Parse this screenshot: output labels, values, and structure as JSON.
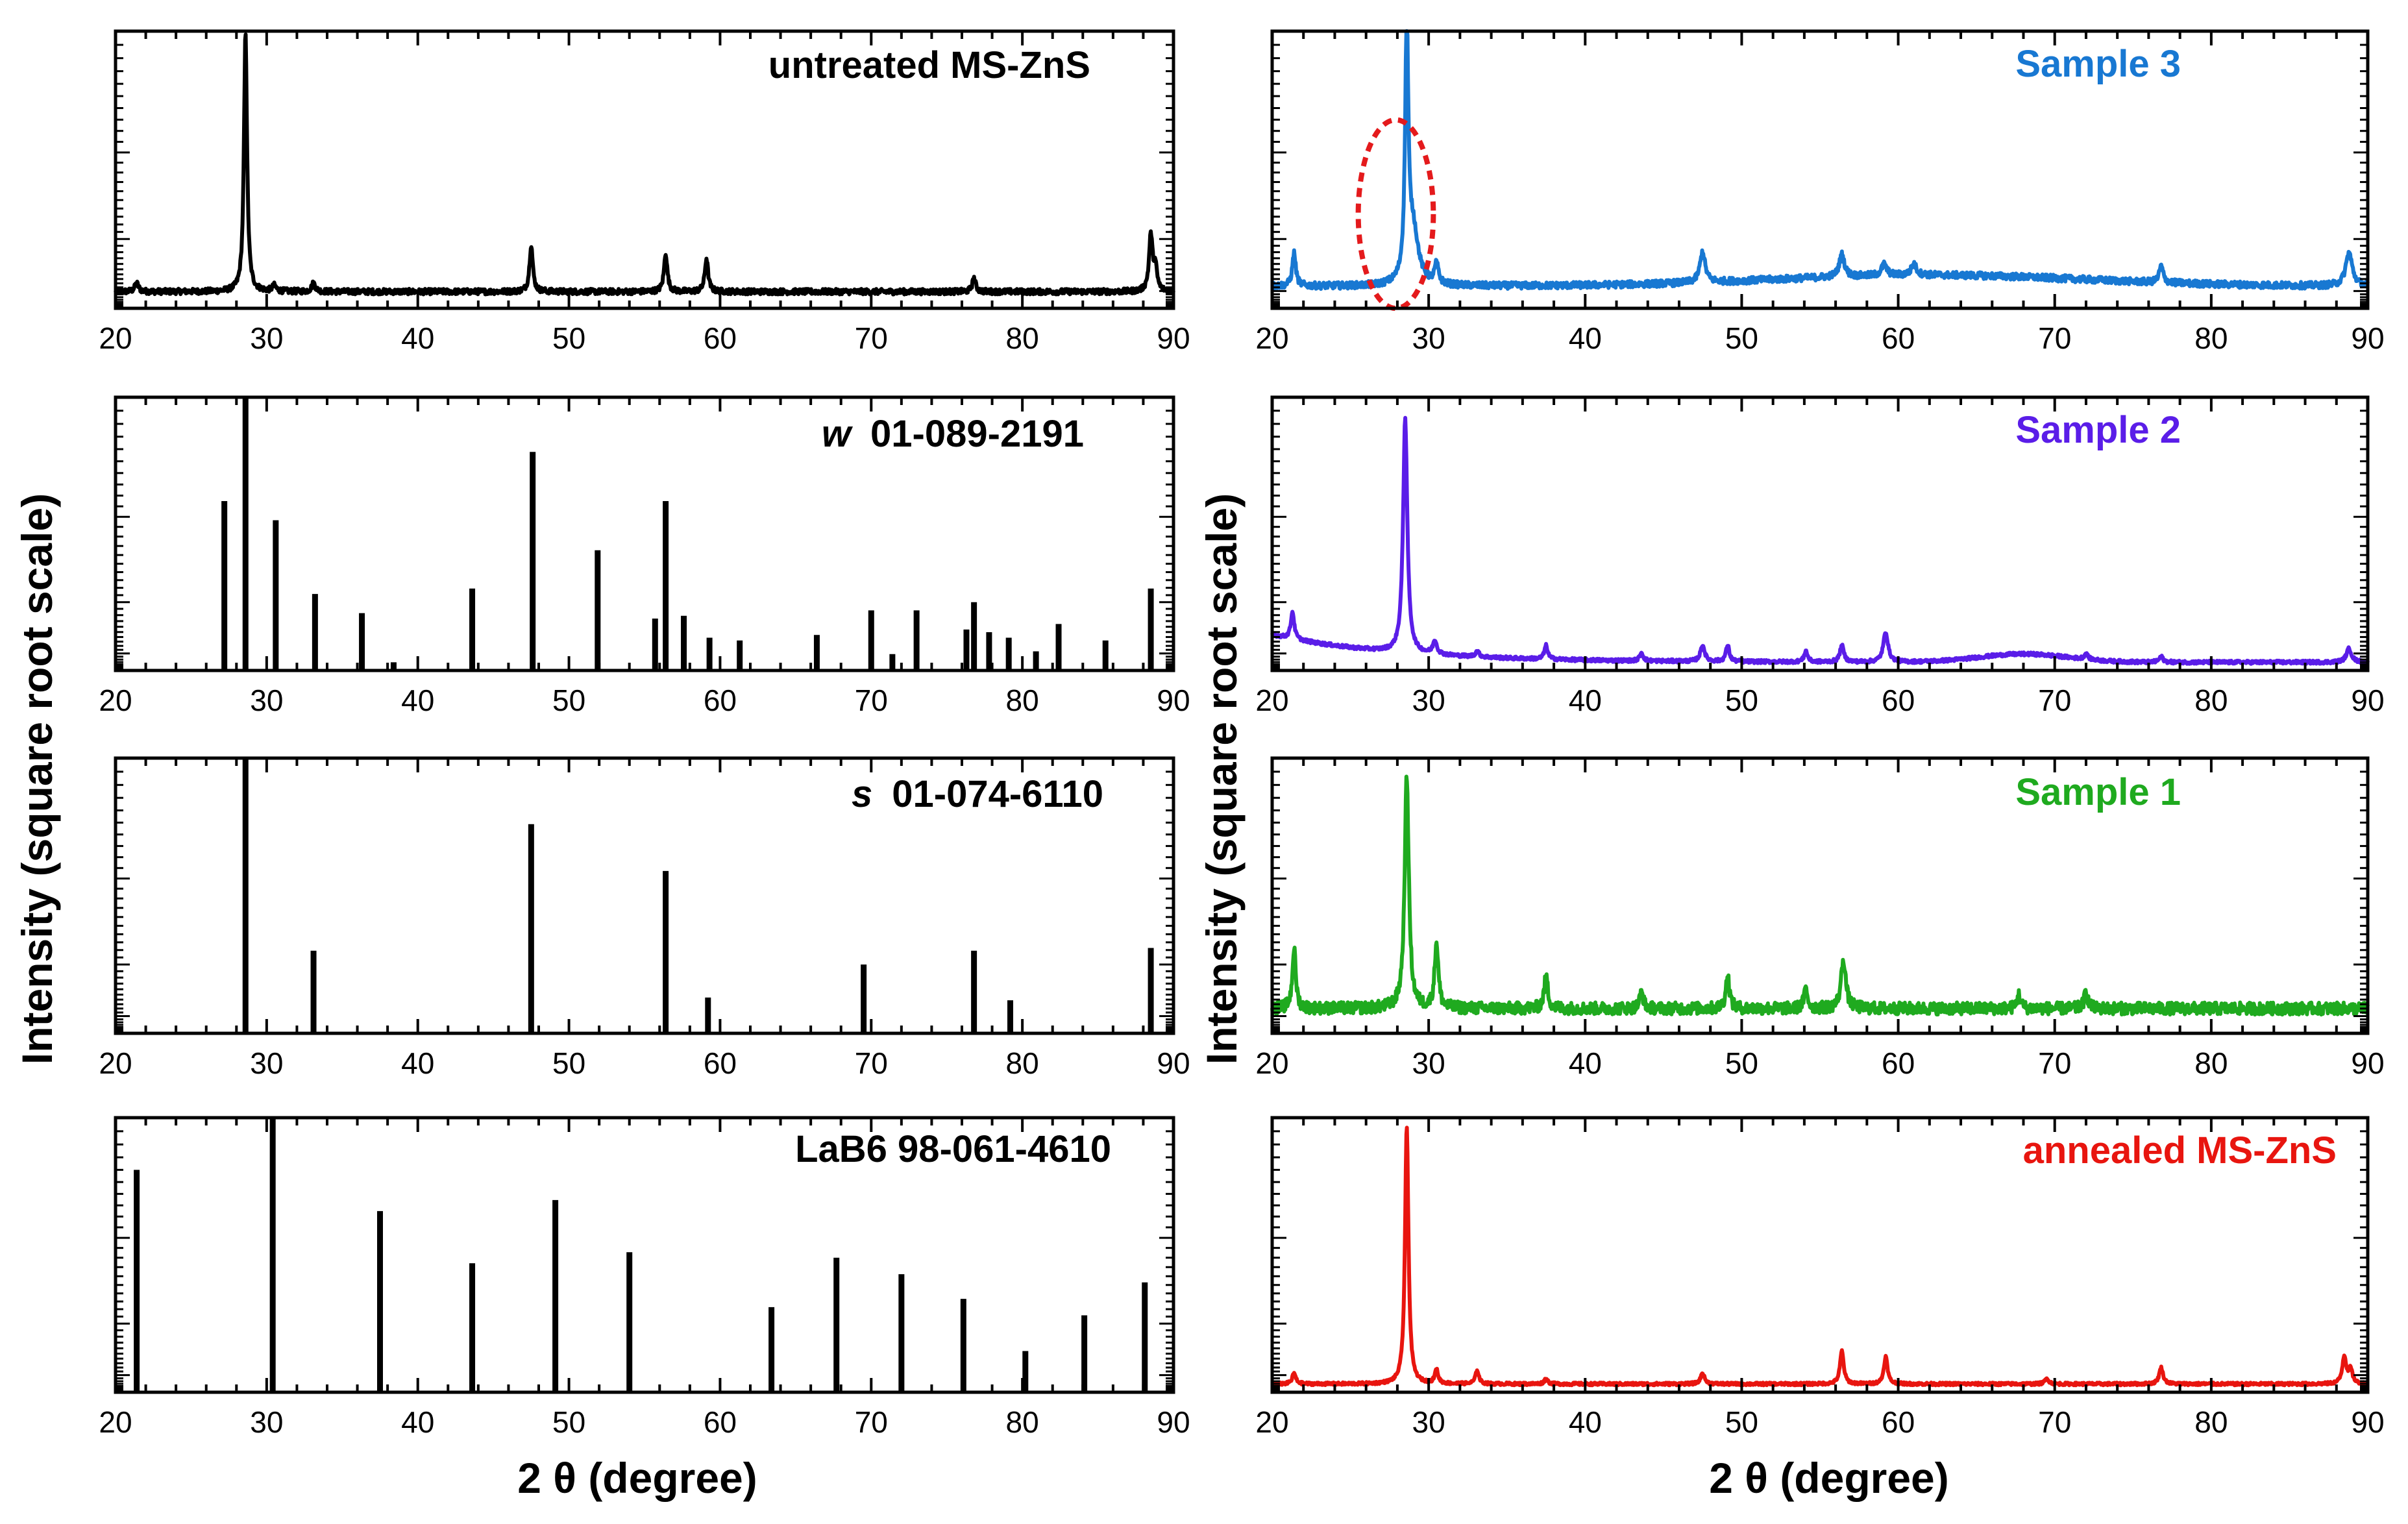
{
  "figure": {
    "xlabel": "2 θ (degree)",
    "ylabel": "Intensity (square root scale)"
  },
  "chart_data": [
    {
      "id": "untreated",
      "type": "line",
      "title": "untreated MS-ZnS",
      "title_italic_prefix": "",
      "color": "#000000",
      "xlim": [
        20,
        90
      ],
      "ylim": [
        0,
        100
      ],
      "xticks": [
        20,
        30,
        40,
        50,
        60,
        70,
        80,
        90
      ],
      "baseline": 6,
      "noise": 1.0,
      "peaks": [
        {
          "x": 21.4,
          "h": 3,
          "w": 0.15
        },
        {
          "x": 28.6,
          "h": 94,
          "w": 0.12
        },
        {
          "x": 30.5,
          "h": 2,
          "w": 0.15
        },
        {
          "x": 33.1,
          "h": 3,
          "w": 0.15
        },
        {
          "x": 47.5,
          "h": 17,
          "w": 0.13
        },
        {
          "x": 56.4,
          "h": 14,
          "w": 0.13
        },
        {
          "x": 59.1,
          "h": 12,
          "w": 0.13
        },
        {
          "x": 76.8,
          "h": 5,
          "w": 0.13
        },
        {
          "x": 88.5,
          "h": 20,
          "w": 0.14
        },
        {
          "x": 88.8,
          "h": 8,
          "w": 0.14
        }
      ]
    },
    {
      "id": "wurtzite",
      "type": "stick",
      "title": "01-089-2191",
      "title_italic_prefix": "w",
      "color": "#000000",
      "xlim": [
        20,
        90
      ],
      "ylim": [
        0,
        100
      ],
      "xticks": [
        20,
        30,
        40,
        50,
        60,
        70,
        80,
        90
      ],
      "x": [
        27.2,
        28.6,
        30.6,
        33.2,
        36.3,
        38.4,
        43.6,
        47.6,
        51.9,
        55.7,
        56.4,
        57.6,
        59.3,
        61.3,
        66.4,
        70.0,
        71.4,
        73.0,
        76.3,
        76.8,
        77.8,
        79.1,
        80.9,
        82.4,
        85.5,
        88.5
      ],
      "values": [
        62,
        100,
        55,
        28,
        21,
        3,
        30,
        80,
        44,
        19,
        62,
        20,
        12,
        11,
        13,
        22,
        6,
        22,
        15,
        25,
        14,
        12,
        7,
        17,
        11,
        30
      ]
    },
    {
      "id": "sphalerite",
      "type": "stick",
      "title": "01-074-6110",
      "title_italic_prefix": "s",
      "color": "#000000",
      "xlim": [
        20,
        90
      ],
      "ylim": [
        0,
        100
      ],
      "xticks": [
        20,
        30,
        40,
        50,
        60,
        70,
        80,
        90
      ],
      "x": [
        28.6,
        33.1,
        47.5,
        56.4,
        59.2,
        69.5,
        76.8,
        79.2,
        88.5
      ],
      "values": [
        100,
        30,
        76,
        59,
        13,
        25,
        30,
        12,
        31
      ]
    },
    {
      "id": "lab6",
      "type": "stick",
      "title": "LaB6 98-061-4610",
      "title_italic_prefix": "",
      "color": "#000000",
      "xlim": [
        20,
        90
      ],
      "ylim": [
        0,
        100
      ],
      "xticks": [
        20,
        30,
        40,
        50,
        60,
        70,
        80,
        90
      ],
      "x": [
        21.4,
        30.4,
        37.5,
        43.6,
        49.1,
        54.0,
        63.4,
        67.7,
        72.0,
        76.1,
        80.2,
        84.1,
        88.1
      ],
      "values": [
        81,
        100,
        66,
        47,
        70,
        51,
        31,
        49,
        43,
        34,
        15,
        28,
        40
      ]
    },
    {
      "id": "sample3",
      "type": "line",
      "title": "Sample 3",
      "title_italic_prefix": "",
      "color": "#1878d2",
      "xlim": [
        20,
        90
      ],
      "ylim": [
        0,
        100
      ],
      "xticks": [
        20,
        30,
        40,
        50,
        60,
        70,
        80,
        90
      ],
      "baseline": 8,
      "noise": 1.2,
      "hump": {
        "x": 62,
        "h": 4,
        "w": 14
      },
      "peaks": [
        {
          "x": 21.4,
          "h": 12,
          "w": 0.13
        },
        {
          "x": 28.6,
          "h": 90,
          "w": 0.12
        },
        {
          "x": 29.0,
          "h": 20,
          "w": 0.4
        },
        {
          "x": 30.5,
          "h": 7,
          "w": 0.15
        },
        {
          "x": 47.5,
          "h": 11,
          "w": 0.2
        },
        {
          "x": 56.4,
          "h": 8,
          "w": 0.2
        },
        {
          "x": 59.1,
          "h": 4,
          "w": 0.2
        },
        {
          "x": 61.0,
          "h": 4,
          "w": 0.2
        },
        {
          "x": 76.8,
          "h": 6,
          "w": 0.15
        },
        {
          "x": 88.8,
          "h": 12,
          "w": 0.25
        }
      ],
      "annotation": {
        "type": "dashed-ellipse",
        "color": "#e41a1c",
        "cx": 27.9,
        "cy": 34,
        "rx": 2.4,
        "ry": 34
      }
    },
    {
      "id": "sample2",
      "type": "line",
      "title": "Sample 2",
      "title_italic_prefix": "",
      "color": "#5a1de8",
      "xlim": [
        20,
        90
      ],
      "ylim": [
        0,
        100
      ],
      "xticks": [
        20,
        30,
        40,
        50,
        60,
        70,
        80,
        90
      ],
      "baseline": 3,
      "noise": 0.6,
      "slope": {
        "start": 10,
        "decay": 8
      },
      "hump": {
        "x": 68,
        "h": 3,
        "w": 4
      },
      "peaks": [
        {
          "x": 21.3,
          "h": 10,
          "w": 0.13
        },
        {
          "x": 28.5,
          "h": 86,
          "w": 0.16
        },
        {
          "x": 30.4,
          "h": 5,
          "w": 0.15
        },
        {
          "x": 33.1,
          "h": 2,
          "w": 0.15
        },
        {
          "x": 37.5,
          "h": 5,
          "w": 0.13
        },
        {
          "x": 43.6,
          "h": 3,
          "w": 0.13
        },
        {
          "x": 47.5,
          "h": 6,
          "w": 0.16
        },
        {
          "x": 49.1,
          "h": 6,
          "w": 0.13
        },
        {
          "x": 54.1,
          "h": 4,
          "w": 0.13
        },
        {
          "x": 56.4,
          "h": 6,
          "w": 0.15
        },
        {
          "x": 59.2,
          "h": 11,
          "w": 0.18
        },
        {
          "x": 72.0,
          "h": 2,
          "w": 0.15
        },
        {
          "x": 76.8,
          "h": 2,
          "w": 0.15
        },
        {
          "x": 88.8,
          "h": 5,
          "w": 0.2
        }
      ]
    },
    {
      "id": "sample1",
      "type": "line",
      "title": "Sample 1",
      "title_italic_prefix": "",
      "color": "#1faa1f",
      "xlim": [
        20,
        90
      ],
      "ylim": [
        0,
        100
      ],
      "xticks": [
        20,
        30,
        40,
        50,
        60,
        70,
        80,
        90
      ],
      "baseline": 9,
      "noise": 2.2,
      "peaks": [
        {
          "x": 21.4,
          "h": 22,
          "w": 0.13
        },
        {
          "x": 28.6,
          "h": 84,
          "w": 0.16
        },
        {
          "x": 30.5,
          "h": 24,
          "w": 0.14
        },
        {
          "x": 37.5,
          "h": 12,
          "w": 0.14
        },
        {
          "x": 43.6,
          "h": 6,
          "w": 0.14
        },
        {
          "x": 49.1,
          "h": 12,
          "w": 0.14
        },
        {
          "x": 54.1,
          "h": 7,
          "w": 0.14
        },
        {
          "x": 56.5,
          "h": 18,
          "w": 0.18
        },
        {
          "x": 67.7,
          "h": 5,
          "w": 0.14
        },
        {
          "x": 72.0,
          "h": 6,
          "w": 0.14
        }
      ]
    },
    {
      "id": "annealed",
      "type": "line",
      "title": "annealed MS-ZnS",
      "title_italic_prefix": "",
      "color": "#e8150f",
      "xlim": [
        20,
        90
      ],
      "ylim": [
        0,
        100
      ],
      "xticks": [
        20,
        30,
        40,
        50,
        60,
        70,
        80,
        90
      ],
      "baseline": 3,
      "noise": 0.5,
      "peaks": [
        {
          "x": 21.4,
          "h": 4,
          "w": 0.13
        },
        {
          "x": 28.6,
          "h": 94,
          "w": 0.13
        },
        {
          "x": 30.5,
          "h": 5,
          "w": 0.13
        },
        {
          "x": 33.1,
          "h": 5,
          "w": 0.13
        },
        {
          "x": 37.5,
          "h": 2,
          "w": 0.13
        },
        {
          "x": 47.5,
          "h": 4,
          "w": 0.15
        },
        {
          "x": 56.4,
          "h": 12,
          "w": 0.14
        },
        {
          "x": 59.2,
          "h": 10,
          "w": 0.14
        },
        {
          "x": 69.5,
          "h": 2,
          "w": 0.15
        },
        {
          "x": 76.8,
          "h": 6,
          "w": 0.15
        },
        {
          "x": 88.5,
          "h": 10,
          "w": 0.15
        },
        {
          "x": 88.9,
          "h": 5,
          "w": 0.15
        }
      ]
    }
  ]
}
